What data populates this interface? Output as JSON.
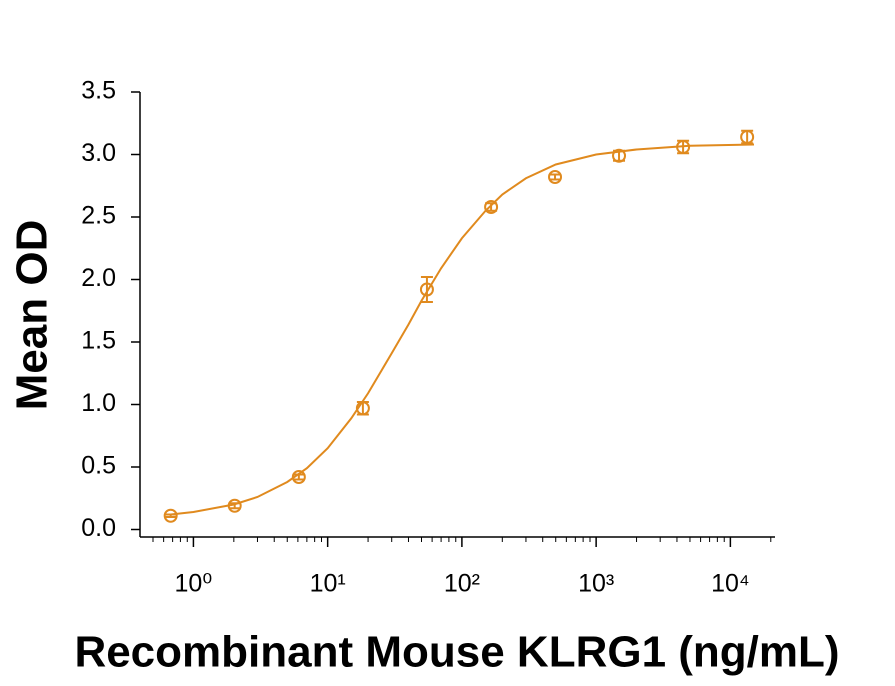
{
  "chart_data": {
    "type": "scatter",
    "x_label": "Recombinant Mouse KLRG1 (ng/mL)",
    "y_label": "Mean OD",
    "x": [
      0.677,
      2.03,
      6.1,
      18.3,
      54.9,
      165,
      494,
      1481,
      4444,
      13333
    ],
    "series": [
      {
        "color": "#e08a1e",
        "values": [
          0.11,
          0.19,
          0.42,
          0.97,
          1.92,
          2.58,
          2.82,
          2.99,
          3.06,
          3.14
        ],
        "errors": [
          0.01,
          0.02,
          0.02,
          0.05,
          0.1,
          0.03,
          0.02,
          0.04,
          0.05,
          0.05
        ]
      }
    ],
    "fit": {
      "color": "#e08a1e",
      "x": [
        0.677,
        1,
        2,
        3,
        5,
        7,
        10,
        15,
        20,
        30,
        40,
        50,
        70,
        100,
        150,
        200,
        300,
        500,
        1000,
        2000,
        5000,
        15000
      ],
      "values": [
        0.12,
        0.14,
        0.2,
        0.26,
        0.38,
        0.49,
        0.65,
        0.89,
        1.09,
        1.41,
        1.64,
        1.83,
        2.09,
        2.33,
        2.55,
        2.68,
        2.81,
        2.92,
        3.0,
        3.04,
        3.07,
        3.08
      ]
    },
    "xscale": "log",
    "xlim": [
      0.4,
      21500
    ],
    "xticks": [
      {
        "value": 1,
        "label": "10⁰"
      },
      {
        "value": 10,
        "label": "10¹"
      },
      {
        "value": 100,
        "label": "10²"
      },
      {
        "value": 1000,
        "label": "10³"
      },
      {
        "value": 10000,
        "label": "10⁴"
      }
    ],
    "ylim": [
      -0.06,
      3.5
    ],
    "yticks": [
      {
        "value": 0,
        "label": "0.0"
      },
      0.5,
      {
        "value": 1,
        "label": "1.0"
      },
      1.5,
      {
        "value": 2,
        "label": "2.0"
      },
      2.5,
      {
        "value": 3,
        "label": "3.0"
      },
      3.5
    ],
    "grid": false
  }
}
